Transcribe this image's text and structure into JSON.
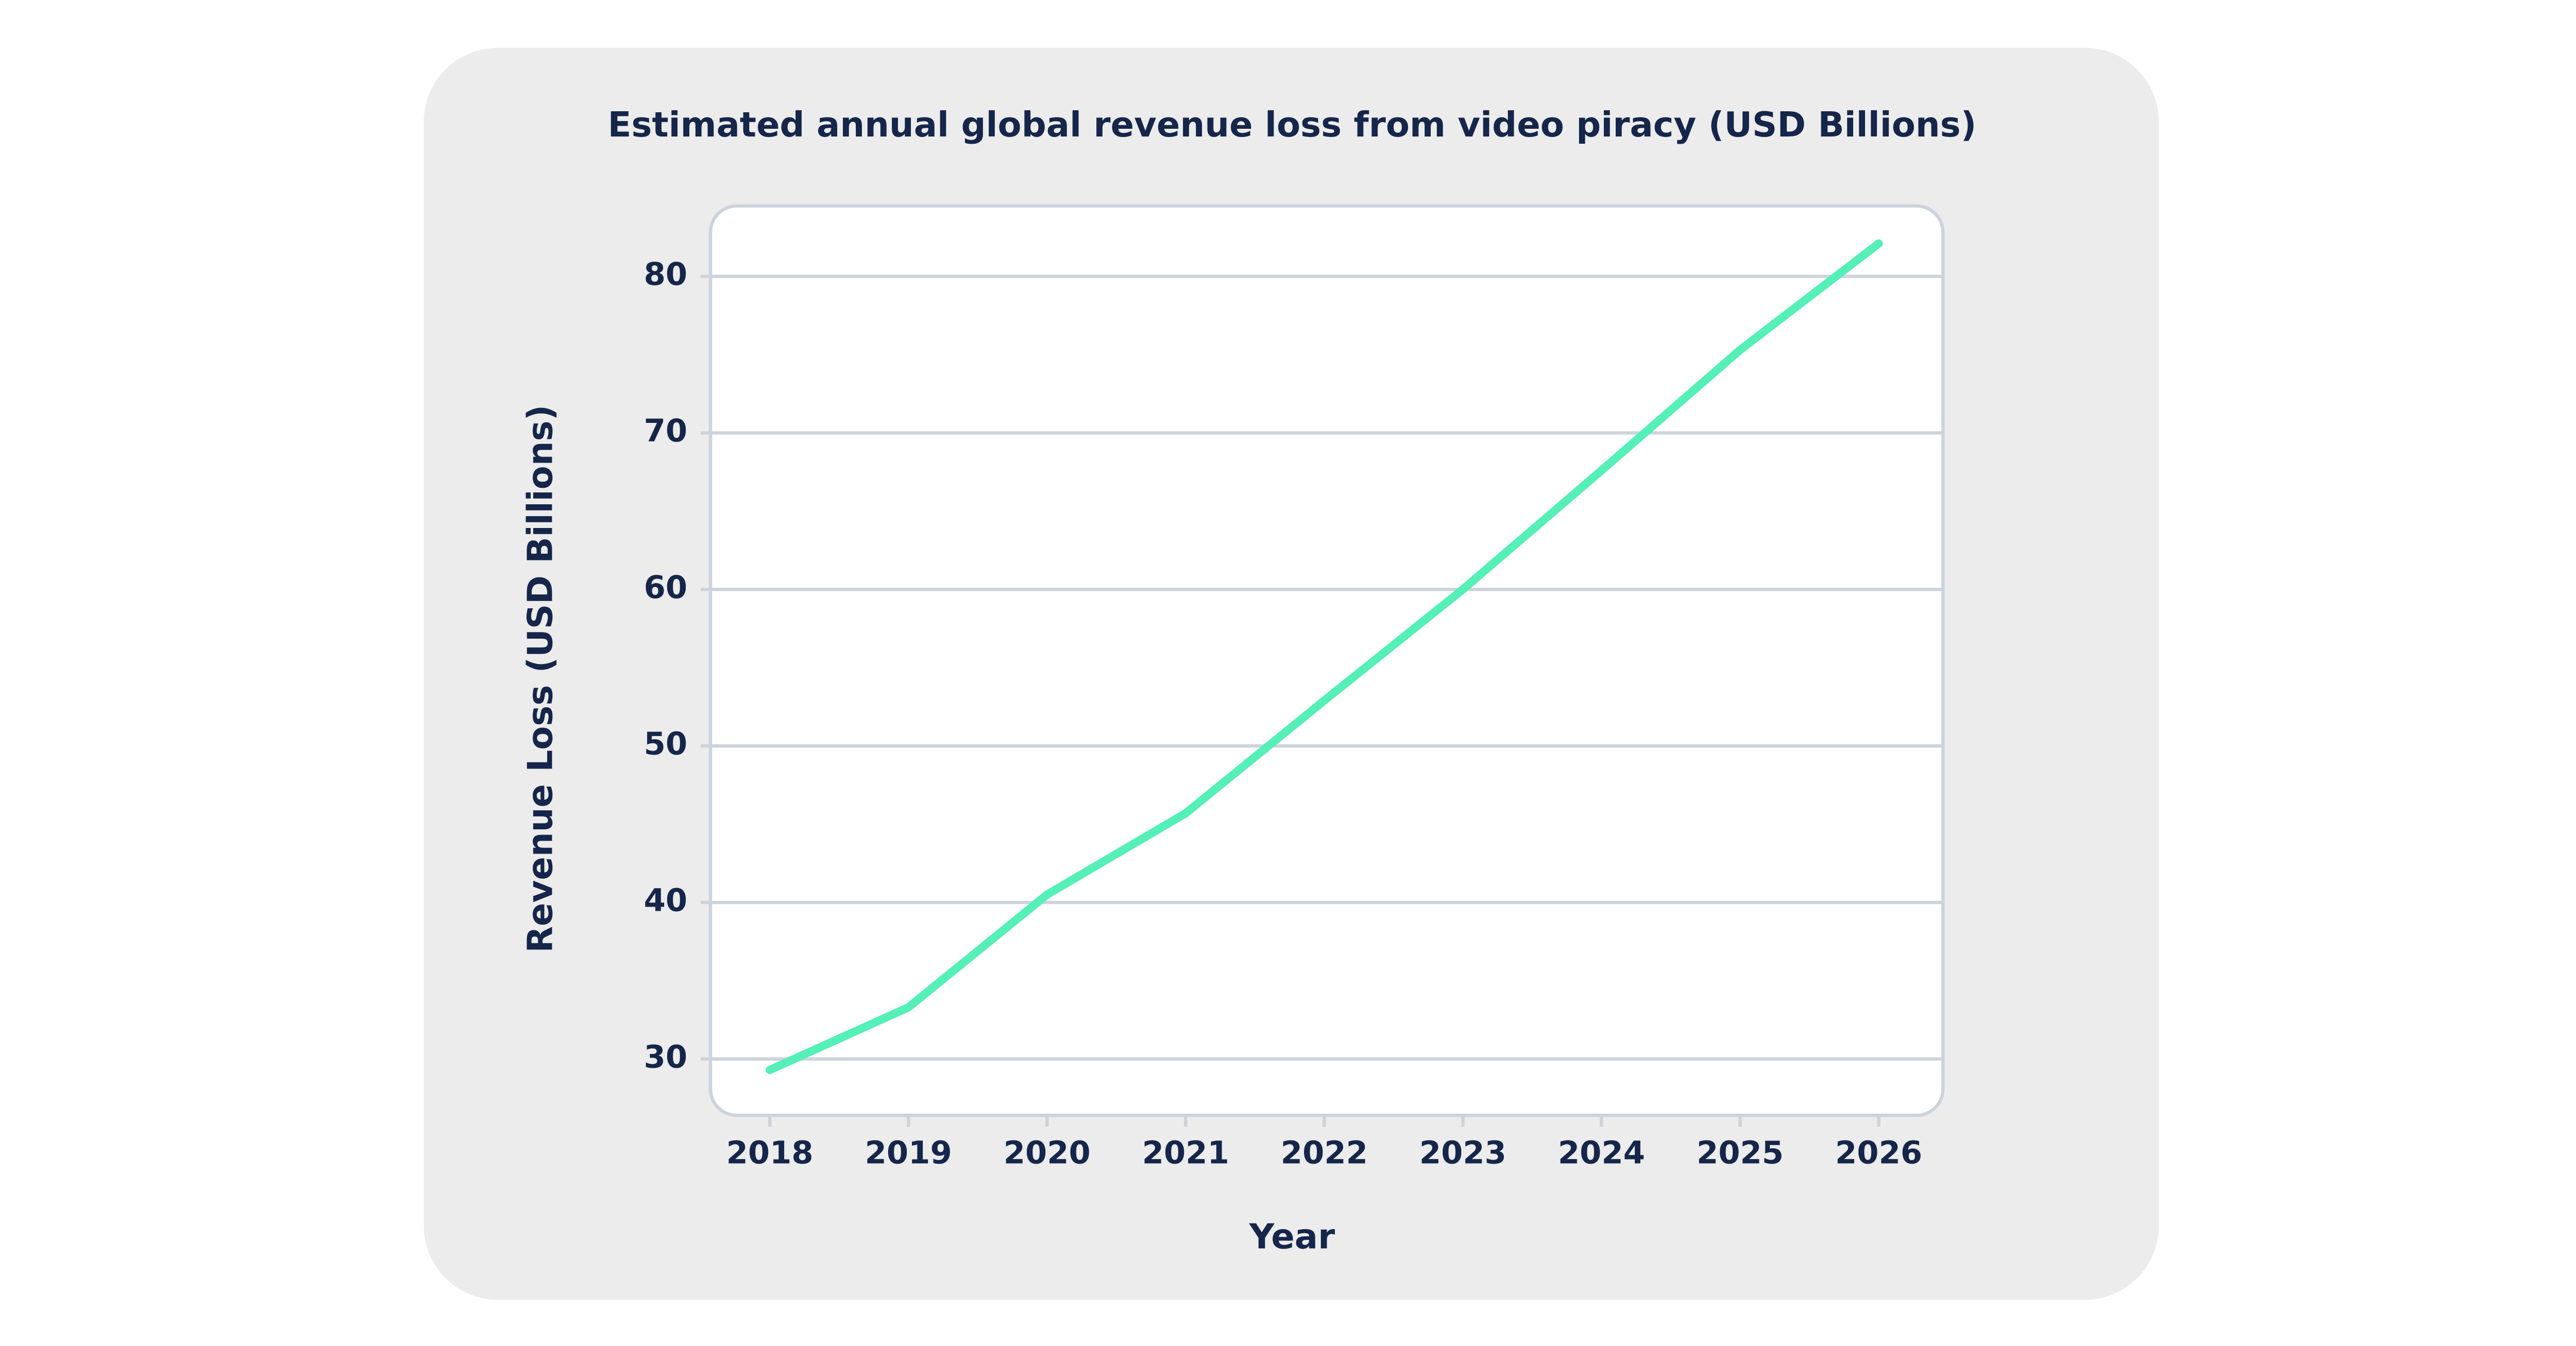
{
  "chart_data": {
    "type": "line",
    "title": "Estimated annual global revenue loss from video piracy (USD Billions)",
    "x_label": "Year",
    "y_label": "Revenue Loss (USD Billions)",
    "categories": [
      "2018",
      "2019",
      "2020",
      "2021",
      "2022",
      "2023",
      "2024",
      "2025",
      "2026"
    ],
    "series": [
      {
        "name": "Revenue Loss",
        "color": "#55efb8",
        "values": [
          29.3,
          33.3,
          40.5,
          45.7,
          52.9,
          60.0,
          67.6,
          75.3,
          82.1
        ]
      }
    ],
    "ylim": [
      26.4,
      84.5
    ],
    "yticks": [
      30,
      40,
      50,
      60,
      70,
      80
    ],
    "grid": true
  }
}
